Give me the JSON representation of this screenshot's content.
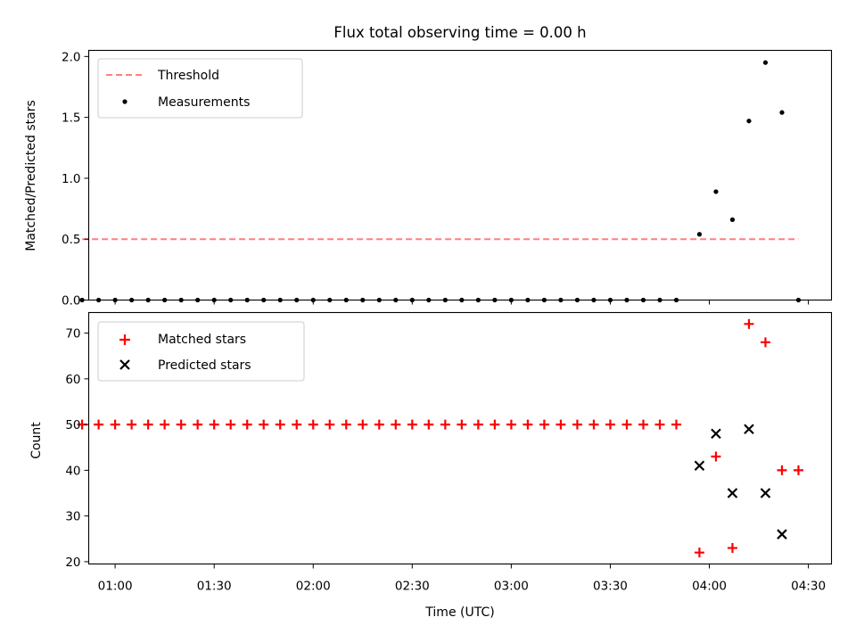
{
  "title": "Flux total observing time = 0.00 h",
  "chart_data": [
    {
      "type": "scatter",
      "ylabel": "Matched/Predicted stars",
      "xlabel": "",
      "xlim": [
        "00:52",
        "04:37"
      ],
      "ylim": [
        0,
        2.05
      ],
      "yticks": [
        0.0,
        0.5,
        1.0,
        1.5,
        2.0
      ],
      "ytick_labels": [
        "0.0",
        "0.5",
        "1.0",
        "1.5",
        "2.0"
      ],
      "grid": false,
      "legend_position": "top-left",
      "legend": [
        "Threshold",
        "Measurements"
      ],
      "colors": {
        "threshold": "#ff7f7f",
        "measurements": "#000000"
      },
      "threshold": {
        "name": "Threshold",
        "value": 0.5,
        "x_start": "00:50",
        "x_end": "04:27"
      },
      "series": [
        {
          "name": "Measurements",
          "x": [
            "00:50",
            "00:55",
            "01:00",
            "01:05",
            "01:10",
            "01:15",
            "01:20",
            "01:25",
            "01:30",
            "01:35",
            "01:40",
            "01:45",
            "01:50",
            "01:55",
            "02:00",
            "02:05",
            "02:10",
            "02:15",
            "02:20",
            "02:25",
            "02:30",
            "02:35",
            "02:40",
            "02:45",
            "02:50",
            "02:55",
            "03:00",
            "03:05",
            "03:10",
            "03:15",
            "03:20",
            "03:25",
            "03:30",
            "03:35",
            "03:40",
            "03:45",
            "03:50",
            "03:57",
            "04:02",
            "04:07",
            "04:12",
            "04:17",
            "04:22",
            "04:27"
          ],
          "y": [
            0,
            0,
            0,
            0,
            0,
            0,
            0,
            0,
            0,
            0,
            0,
            0,
            0,
            0,
            0,
            0,
            0,
            0,
            0,
            0,
            0,
            0,
            0,
            0,
            0,
            0,
            0,
            0,
            0,
            0,
            0,
            0,
            0,
            0,
            0,
            0,
            0,
            0.54,
            0.89,
            0.66,
            1.47,
            1.95,
            1.54,
            0
          ]
        }
      ]
    },
    {
      "type": "scatter",
      "ylabel": "Count",
      "xlabel": "Time (UTC)",
      "xlim": [
        "00:52",
        "04:37"
      ],
      "ylim": [
        19.5,
        74.5
      ],
      "yticks": [
        20,
        30,
        40,
        50,
        60,
        70
      ],
      "ytick_labels": [
        "20",
        "30",
        "40",
        "50",
        "60",
        "70"
      ],
      "xticks": [
        "01:00",
        "01:30",
        "02:00",
        "02:30",
        "03:00",
        "03:30",
        "04:00",
        "04:30"
      ],
      "grid": false,
      "legend_position": "top-left",
      "legend": [
        "Matched stars",
        "Predicted stars"
      ],
      "colors": {
        "matched": "#ff0000",
        "predicted": "#000000"
      },
      "series": [
        {
          "name": "Matched stars",
          "x": [
            "00:50",
            "00:55",
            "01:00",
            "01:05",
            "01:10",
            "01:15",
            "01:20",
            "01:25",
            "01:30",
            "01:35",
            "01:40",
            "01:45",
            "01:50",
            "01:55",
            "02:00",
            "02:05",
            "02:10",
            "02:15",
            "02:20",
            "02:25",
            "02:30",
            "02:35",
            "02:40",
            "02:45",
            "02:50",
            "02:55",
            "03:00",
            "03:05",
            "03:10",
            "03:15",
            "03:20",
            "03:25",
            "03:30",
            "03:35",
            "03:40",
            "03:45",
            "03:50",
            "03:57",
            "04:02",
            "04:07",
            "04:12",
            "04:17",
            "04:22",
            "04:27"
          ],
          "y": [
            50,
            50,
            50,
            50,
            50,
            50,
            50,
            50,
            50,
            50,
            50,
            50,
            50,
            50,
            50,
            50,
            50,
            50,
            50,
            50,
            50,
            50,
            50,
            50,
            50,
            50,
            50,
            50,
            50,
            50,
            50,
            50,
            50,
            50,
            50,
            50,
            50,
            22,
            43,
            23,
            72,
            68,
            40,
            40
          ]
        },
        {
          "name": "Predicted stars",
          "x": [
            "03:57",
            "04:02",
            "04:07",
            "04:12",
            "04:17",
            "04:22"
          ],
          "y": [
            41,
            48,
            35,
            49,
            35,
            26
          ]
        }
      ]
    }
  ]
}
